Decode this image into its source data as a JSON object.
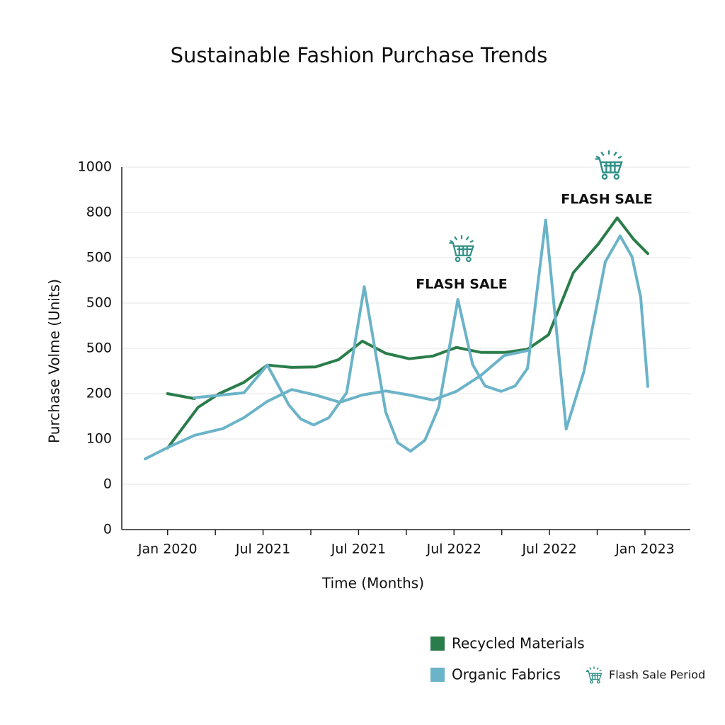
{
  "chart_data": {
    "type": "line",
    "title": "Sustainable Fashion Purchase Trends",
    "xlabel": "Time (Months)",
    "ylabel": "Purchase Volme (Units)",
    "xlim": [
      -0.96,
      10.95
    ],
    "xticks": [
      {
        "value": 0,
        "label": "Jan 2020"
      },
      {
        "value": 2,
        "label": "Jul 2021"
      },
      {
        "value": 4,
        "label": "Jul 2021"
      },
      {
        "value": 6,
        "label": "Jul 2022"
      },
      {
        "value": 8,
        "label": "Jul 2022"
      },
      {
        "value": 10,
        "label": "Jan 2023"
      }
    ],
    "xminor_ticks": [
      1,
      3,
      5,
      7,
      9
    ],
    "ylim": [
      0,
      800
    ],
    "yticks": [
      0,
      {
        "value": 100,
        "label": "0"
      },
      {
        "value": 200,
        "label": "100"
      },
      {
        "value": 300,
        "label": "200"
      },
      {
        "value": 400,
        "label": "500"
      },
      500,
      {
        "value": 600,
        "label": "500"
      },
      {
        "value": 700,
        "label": "800"
      },
      {
        "value": 800,
        "label": "1000"
      }
    ],
    "grid": true,
    "series": [
      {
        "name": "Recycled Materials",
        "color": "#2a7d4a",
        "x": [
          0,
          0.56,
          null,
          0,
          0.64,
          1.08,
          1.6,
          2.09,
          2.6,
          3.1,
          3.58,
          4.08,
          4.57,
          5.06,
          5.56,
          6.05,
          6.57,
          7.05,
          7.54,
          7.98,
          8.5,
          9.02,
          9.42,
          9.76,
          10.06
        ],
        "values": [
          300,
          289,
          null,
          180,
          270,
          300,
          325,
          363,
          358,
          359,
          375,
          416,
          389,
          377,
          383,
          402,
          391,
          391,
          398,
          430,
          567,
          630,
          688,
          641,
          609
        ]
      },
      {
        "name": "Organic Fabrics",
        "color": "#6bb3c8",
        "x": [
          -0.47,
          0,
          0.56,
          1.16,
          1.6,
          2.09,
          2.6,
          3.1,
          3.61,
          4.08,
          4.57,
          5.06,
          5.56,
          6.05,
          6.57,
          7.05,
          7.54,
          null,
          0.56,
          1.6,
          2.09,
          2.54,
          2.79,
          3.06,
          3.38,
          3.75,
          4.12,
          4.57,
          4.82,
          5.09,
          5.39,
          5.68,
          6.08,
          6.39,
          6.65,
          6.99,
          7.28,
          7.54,
          7.92,
          8.35,
          8.72,
          9.17,
          9.48,
          9.73,
          9.91,
          10.06
        ],
        "values": [
          156,
          181,
          208,
          223,
          247,
          283,
          309,
          297,
          281,
          297,
          306,
          297,
          286,
          305,
          341,
          384,
          395,
          null,
          291,
          302,
          363,
          275,
          244,
          231,
          247,
          302,
          536,
          259,
          192,
          173,
          197,
          270,
          508,
          364,
          317,
          305,
          317,
          356,
          683,
          222,
          348,
          591,
          648,
          602,
          513,
          316
        ]
      }
    ],
    "annotations": [
      "FLASH SALE",
      "FLASH SALE"
    ],
    "legend_extra": "Flash Sale Period"
  }
}
